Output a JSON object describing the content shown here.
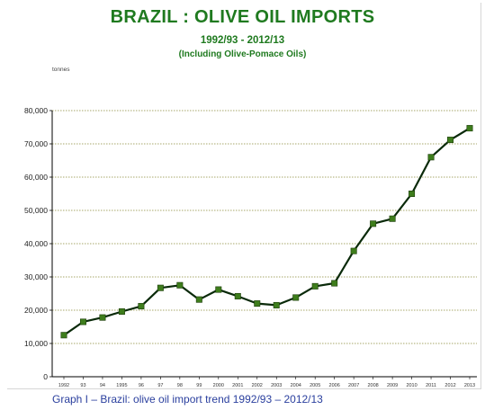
{
  "chart_data": {
    "type": "line",
    "title": "BRAZIL : OLIVE OIL IMPORTS",
    "subtitle": "1992/93 - 2012/13",
    "subtitle2": "(Including Olive-Pomace Oils)",
    "unit_label": "tonnes",
    "ylim": [
      0,
      80000
    ],
    "y_ticks": [
      "0",
      "10,000",
      "20,000",
      "30,000",
      "40,000",
      "50,000",
      "60,000",
      "70,000",
      "80,000"
    ],
    "y_tick_values": [
      0,
      10000,
      20000,
      30000,
      40000,
      50000,
      60000,
      70000,
      80000
    ],
    "categories": [
      "1992",
      "93",
      "94",
      "1995",
      "96",
      "97",
      "98",
      "99",
      "2000",
      "2001",
      "2002",
      "2003",
      "2004",
      "2005",
      "2006",
      "2007",
      "2008",
      "2009",
      "2010",
      "2011",
      "2012",
      "2013"
    ],
    "values": [
      12500,
      16500,
      17800,
      19600,
      21200,
      26700,
      27500,
      23200,
      26200,
      24200,
      22000,
      21500,
      23800,
      27200,
      28100,
      37800,
      46000,
      47500,
      55000,
      66000,
      71200,
      74700
    ],
    "grid": true,
    "line_color": "#0a2a0a",
    "marker_color": "#3e7d1c",
    "grid_color": "#8a8a3a"
  },
  "caption": "Graph I – Brazil: olive oil import trend 1992/93 – 2012/13"
}
